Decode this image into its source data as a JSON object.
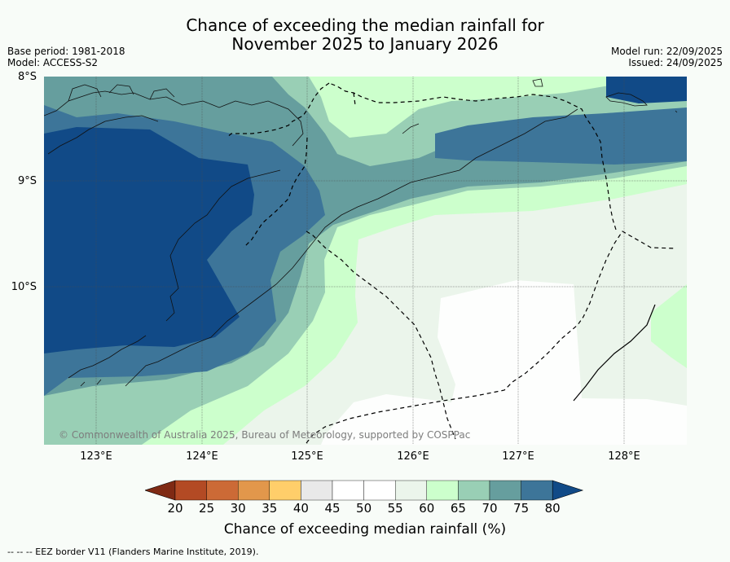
{
  "title": {
    "line1": "Chance of exceeding the median rainfall for",
    "line2": "November 2025 to January 2026"
  },
  "meta": {
    "base_period": "Base period: 1981-2018",
    "model": "Model: ACCESS-S2",
    "model_run": "Model run: 22/09/2025",
    "issued": "Issued: 24/09/2025"
  },
  "map": {
    "lat_labels": [
      "8°S",
      "9°S",
      "10°S"
    ],
    "lon_labels": [
      "123°E",
      "124°E",
      "125°E",
      "126°E",
      "127°E",
      "128°E"
    ],
    "copyright": "© Commonwealth of Australia 2025, Bureau of Meteorology, supported by COSPPac"
  },
  "legend": {
    "ticks": [
      "20",
      "25",
      "30",
      "35",
      "40",
      "45",
      "50",
      "55",
      "60",
      "65",
      "70",
      "75",
      "80"
    ],
    "colors": [
      "#7f2a14",
      "#b34a24",
      "#cc6a36",
      "#e2974b",
      "#ffce6a",
      "#e9e9e9",
      "#ffffff",
      "#ffffff",
      "#ebf5eb",
      "#ccffcc",
      "#99cfb5",
      "#669e9e",
      "#3d7599",
      "#114a87"
    ],
    "label": "Chance of exceeding median rainfall (%)"
  },
  "footer": "--  --  -- EEZ border V11 (Flanders Marine Institute, 2019)."
}
